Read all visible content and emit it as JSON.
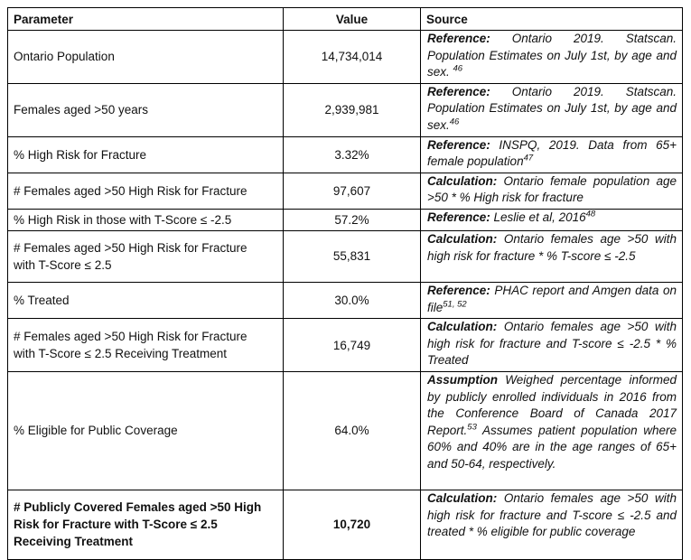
{
  "colors": {
    "background": "#ffffff",
    "border": "#000000",
    "text": "#111111"
  },
  "table": {
    "headers": {
      "parameter": "Parameter",
      "value": "Value",
      "source": "Source"
    },
    "rows": [
      {
        "parameter": "Ontario Population",
        "value": "14,734,014",
        "emphasis": false,
        "source": [
          {
            "style": "label",
            "t": "Reference:"
          },
          {
            "style": "text",
            "t": " Ontario 2019. Statscan. Population Estimates on July 1st, by age and sex. "
          },
          {
            "style": "sup",
            "t": "46"
          }
        ]
      },
      {
        "parameter": "Females aged >50 years",
        "value": "2,939,981",
        "emphasis": false,
        "source": [
          {
            "style": "label",
            "t": "Reference:"
          },
          {
            "style": "text",
            "t": " Ontario 2019. Statscan. Population Estimates on July 1st, by age and sex."
          },
          {
            "style": "sup",
            "t": "46"
          }
        ]
      },
      {
        "parameter": "% High Risk for Fracture",
        "value": "3.32%",
        "emphasis": false,
        "source": [
          {
            "style": "label",
            "t": "Reference:"
          },
          {
            "style": "text",
            "t": " INSPQ, 2019. Data from 65+ female population"
          },
          {
            "style": "sup",
            "t": "47"
          }
        ]
      },
      {
        "parameter": "# Females aged >50 High Risk for Fracture",
        "value": "97,607",
        "emphasis": false,
        "source": [
          {
            "style": "label",
            "t": "Calculation:"
          },
          {
            "style": "text",
            "t": " Ontario female population age >50 * % High risk for fracture"
          }
        ]
      },
      {
        "parameter": "% High Risk in those with T-Score ≤ -2.5",
        "value": "57.2%",
        "emphasis": false,
        "source": [
          {
            "style": "label",
            "t": "Reference:"
          },
          {
            "style": "text",
            "t": " Leslie et al, 2016"
          },
          {
            "style": "sup",
            "t": "48"
          }
        ]
      },
      {
        "parameter": "# Females aged >50 High Risk for Fracture with T-Score ≤ 2.5",
        "value": "55,831",
        "emphasis": false,
        "source": [
          {
            "style": "label",
            "t": "Calculation:"
          },
          {
            "style": "text",
            "t": " Ontario females age >50 with high risk for fracture * % T-score ≤ -2.5"
          }
        ]
      },
      {
        "parameter": "% Treated",
        "value": "30.0%",
        "emphasis": false,
        "source": [
          {
            "style": "label",
            "t": "Reference:"
          },
          {
            "style": "text",
            "t": " PHAC report and Amgen data on file"
          },
          {
            "style": "sup",
            "t": "51, 52"
          }
        ]
      },
      {
        "parameter": "# Females aged >50 High Risk for Fracture with T-Score ≤ 2.5 Receiving Treatment",
        "value": "16,749",
        "emphasis": false,
        "source": [
          {
            "style": "label",
            "t": "Calculation:"
          },
          {
            "style": "text",
            "t": " Ontario females age >50 with high risk for fracture and T-score ≤ -2.5 * % Treated"
          }
        ]
      },
      {
        "parameter": "% Eligible for Public Coverage",
        "value": "64.0%",
        "emphasis": false,
        "source": [
          {
            "style": "label",
            "t": "Assumption"
          },
          {
            "style": "text",
            "t": " Weighed percentage informed by publicly enrolled individuals in 2016 from the Conference Board of Canada 2017 Report."
          },
          {
            "style": "sup",
            "t": "53"
          },
          {
            "style": "text",
            "t": " Assumes patient population where 60% and 40% are in the age ranges of 65+ and 50-64, respectively."
          }
        ]
      },
      {
        "parameter": "# Publicly Covered Females aged >50 High Risk for Fracture with T-Score ≤ 2.5 Receiving Treatment",
        "value": "10,720",
        "emphasis": true,
        "source": [
          {
            "style": "label",
            "t": "Calculation:"
          },
          {
            "style": "text",
            "t": " Ontario females age >50 with high risk for fracture and T-score ≤ -2.5 and treated * % eligible for public coverage"
          }
        ]
      }
    ]
  }
}
